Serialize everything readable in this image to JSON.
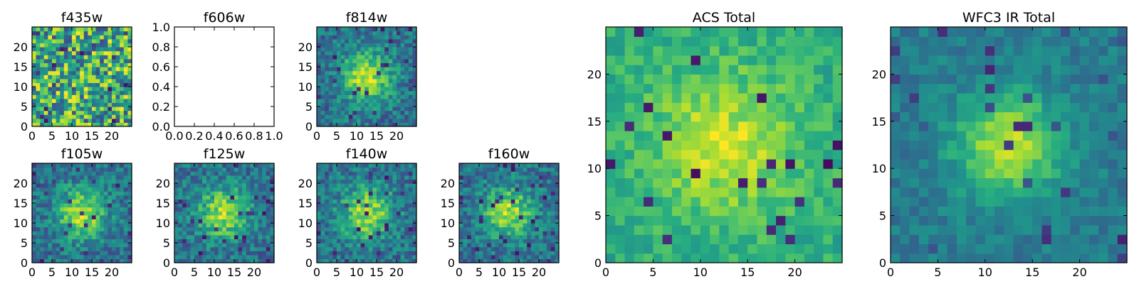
{
  "colors": {
    "colormap": "viridis",
    "frame": "#000000",
    "background": "#ffffff"
  },
  "chart_data": [
    {
      "id": "f435w",
      "type": "heatmap",
      "title": "f435w",
      "grid_size": 25,
      "pattern": "noise",
      "xlim": [
        0,
        25
      ],
      "ylim": [
        0,
        25
      ],
      "x_ticks": [
        0,
        5,
        10,
        15,
        20
      ],
      "y_ticks": [
        0,
        5,
        10,
        15,
        20
      ],
      "colormap": "viridis",
      "grid": false
    },
    {
      "id": "f606w",
      "type": "empty",
      "title": "f606w",
      "xlim": [
        0.0,
        1.0
      ],
      "ylim": [
        0.0,
        1.0
      ],
      "x_ticks": [
        "0.0",
        "0.2",
        "0.4",
        "0.6",
        "0.8",
        "1.0"
      ],
      "y_ticks": [
        "0.0",
        "0.2",
        "0.4",
        "0.6",
        "0.8",
        "1.0"
      ],
      "grid": false
    },
    {
      "id": "f814w",
      "type": "heatmap",
      "title": "f814w",
      "grid_size": 25,
      "pattern": "source",
      "xlim": [
        0,
        25
      ],
      "ylim": [
        0,
        25
      ],
      "x_ticks": [
        0,
        5,
        10,
        15,
        20
      ],
      "y_ticks": [
        0,
        5,
        10,
        15,
        20
      ],
      "colormap": "viridis",
      "grid": false
    },
    {
      "id": "f105w",
      "type": "heatmap",
      "title": "f105w",
      "grid_size": 25,
      "pattern": "source",
      "xlim": [
        0,
        25
      ],
      "ylim": [
        0,
        25
      ],
      "x_ticks": [
        0,
        5,
        10,
        15,
        20
      ],
      "y_ticks": [
        0,
        5,
        10,
        15,
        20
      ],
      "colormap": "viridis",
      "grid": false
    },
    {
      "id": "f125w",
      "type": "heatmap",
      "title": "f125w",
      "grid_size": 25,
      "pattern": "source",
      "xlim": [
        0,
        25
      ],
      "ylim": [
        0,
        25
      ],
      "x_ticks": [
        0,
        5,
        10,
        15,
        20
      ],
      "y_ticks": [
        0,
        5,
        10,
        15,
        20
      ],
      "colormap": "viridis",
      "grid": false
    },
    {
      "id": "f140w",
      "type": "heatmap",
      "title": "f140w",
      "grid_size": 25,
      "pattern": "source",
      "xlim": [
        0,
        25
      ],
      "ylim": [
        0,
        25
      ],
      "x_ticks": [
        0,
        5,
        10,
        15,
        20
      ],
      "y_ticks": [
        0,
        5,
        10,
        15,
        20
      ],
      "colormap": "viridis",
      "grid": false
    },
    {
      "id": "f160w",
      "type": "heatmap",
      "title": "f160w",
      "grid_size": 25,
      "pattern": "source",
      "xlim": [
        0,
        25
      ],
      "ylim": [
        0,
        25
      ],
      "x_ticks": [
        0,
        5,
        10,
        15,
        20
      ],
      "y_ticks": [
        0,
        5,
        10,
        15,
        20
      ],
      "colormap": "viridis",
      "grid": false
    },
    {
      "id": "acs-total",
      "type": "heatmap",
      "title": "ACS Total",
      "grid_size": 25,
      "pattern": "source-bright",
      "xlim": [
        0,
        25
      ],
      "ylim": [
        0,
        25
      ],
      "x_ticks": [
        0,
        5,
        10,
        15,
        20
      ],
      "y_ticks": [
        0,
        5,
        10,
        15,
        20
      ],
      "colormap": "viridis",
      "grid": false
    },
    {
      "id": "wfc3-ir-total",
      "type": "heatmap",
      "title": "WFC3 IR Total",
      "grid_size": 25,
      "pattern": "source-smooth",
      "xlim": [
        0,
        25
      ],
      "ylim": [
        0,
        25
      ],
      "x_ticks": [
        0,
        5,
        10,
        15,
        20
      ],
      "y_ticks": [
        0,
        5,
        10,
        15,
        20
      ],
      "colormap": "viridis",
      "grid": false
    }
  ]
}
